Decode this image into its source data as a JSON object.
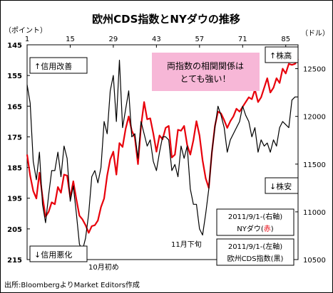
{
  "chart_data": {
    "type": "line",
    "title": "欧州CDS指数とNYダウの推移",
    "left_unit": "（ポイント）",
    "right_unit": "（ドル）",
    "source": "出所:BloombergよりMarket Editors作成",
    "x_ticks": [
      "1",
      "15",
      "29",
      "43",
      "57",
      "71",
      "85"
    ],
    "left_axis": {
      "ticks": [
        "145",
        "155",
        "165",
        "175",
        "185",
        "195",
        "205",
        "215"
      ],
      "range": [
        145,
        215
      ],
      "inverted": true
    },
    "right_axis": {
      "ticks": [
        "12500",
        "12000",
        "11500",
        "11000",
        "10500"
      ],
      "range": [
        10500,
        12750
      ]
    },
    "series": [
      {
        "label": "2011/9/1-(右軸)",
        "name_line": "NYダウ(赤)",
        "name_prefix": "NYダウ(",
        "name_color_word": "赤",
        "name_suffix": ")",
        "axis": "right",
        "color": "#e8000b",
        "x": [
          1,
          2,
          3,
          4,
          5,
          6,
          7,
          8,
          9,
          10,
          11,
          12,
          13,
          14,
          15,
          16,
          17,
          18,
          19,
          20,
          21,
          22,
          23,
          24,
          25,
          26,
          27,
          28,
          29,
          30,
          31,
          32,
          33,
          34,
          35,
          36,
          37,
          38,
          39,
          40,
          41,
          42,
          43,
          44,
          45,
          46,
          47,
          48,
          49,
          50,
          51,
          52,
          53,
          54,
          55,
          56,
          57,
          58,
          59,
          60,
          61,
          62,
          63,
          64,
          65,
          66,
          67,
          68,
          69,
          70,
          71,
          72,
          73,
          74,
          75,
          76,
          77,
          78,
          79,
          80,
          81,
          82,
          83,
          84,
          85,
          86,
          87,
          88,
          89
        ],
        "y": [
          11600,
          11380,
          11220,
          11140,
          11410,
          11160,
          10950,
          11000,
          11100,
          11080,
          11260,
          11200,
          11390,
          11380,
          11150,
          11320,
          11130,
          10960,
          10920,
          10860,
          10780,
          10850,
          10860,
          10910,
          11050,
          11140,
          11380,
          11550,
          11630,
          11390,
          11720,
          11680,
          11870,
          12000,
          11850,
          11780,
          11500,
          11900,
          12150,
          11970,
          11980,
          11820,
          11630,
          11800,
          11760,
          11880,
          11900,
          11570,
          11600,
          11860,
          11850,
          11900,
          11700,
          11600,
          11750,
          11950,
          11800,
          11540,
          11350,
          11250,
          11620,
          11900,
          12050,
          12030,
          11960,
          11880,
          11950,
          12000,
          12080,
          12050,
          12100,
          12150,
          12200,
          12180,
          12280,
          12150,
          12200,
          12300,
          12400,
          12250,
          12300,
          12400,
          12350,
          12500,
          12450,
          12550,
          12540,
          12550,
          12600
        ]
      },
      {
        "label": "2011/9/1-(左軸)",
        "name_line": "欧州CDS指数(黒)",
        "name_prefix": "欧州CDS指数(",
        "name_color_word": "黒",
        "name_suffix": ")",
        "axis": "left",
        "color": "#000000",
        "x": [
          1,
          2,
          3,
          4,
          5,
          6,
          7,
          8,
          9,
          10,
          11,
          12,
          13,
          14,
          15,
          16,
          17,
          18,
          19,
          20,
          21,
          22,
          23,
          24,
          25,
          26,
          27,
          28,
          29,
          30,
          31,
          32,
          33,
          34,
          35,
          36,
          37,
          38,
          39,
          40,
          41,
          42,
          43,
          44,
          45,
          46,
          47,
          48,
          49,
          50,
          51,
          52,
          53,
          54,
          55,
          56,
          57,
          58,
          59,
          60,
          61,
          62,
          63,
          64,
          65,
          66,
          67,
          68,
          69,
          70,
          71,
          72,
          73,
          74,
          75,
          76,
          77,
          78,
          79,
          80,
          81,
          82,
          83,
          84,
          85,
          86,
          87,
          88,
          89
        ],
        "y": [
          158,
          164,
          183,
          189,
          180,
          197,
          203,
          194,
          186,
          186,
          180,
          188,
          178,
          182,
          196,
          191,
          200,
          210,
          212,
          208,
          200,
          188,
          186,
          190,
          185,
          170,
          174,
          160,
          155,
          170,
          150,
          172,
          166,
          160,
          175,
          174,
          182,
          170,
          174,
          178,
          176,
          183,
          186,
          180,
          175,
          175,
          176,
          186,
          184,
          188,
          178,
          182,
          178,
          192,
          197,
          197,
          205,
          207,
          200,
          192,
          180,
          172,
          165,
          168,
          172,
          180,
          176,
          174,
          172,
          170,
          165,
          168,
          170,
          175,
          172,
          180,
          176,
          178,
          177,
          180,
          176,
          178,
          172,
          170,
          171,
          172,
          163,
          162,
          162
        ]
      }
    ],
    "annotations": [
      {
        "text": "↑信用改善",
        "place": "upper-left"
      },
      {
        "text": "↓信用悪化",
        "place": "lower-left"
      },
      {
        "text": "↑株高",
        "place": "upper-right"
      },
      {
        "text": "↓株安",
        "place": "right-middle"
      },
      {
        "text": "10月初め",
        "x": 20
      },
      {
        "text": "11月下旬",
        "x": 57
      }
    ],
    "callout": {
      "line1": "両指数の相関関係は",
      "line2": "とても強い！",
      "fill": "#f7b7d7"
    },
    "grid": false
  }
}
